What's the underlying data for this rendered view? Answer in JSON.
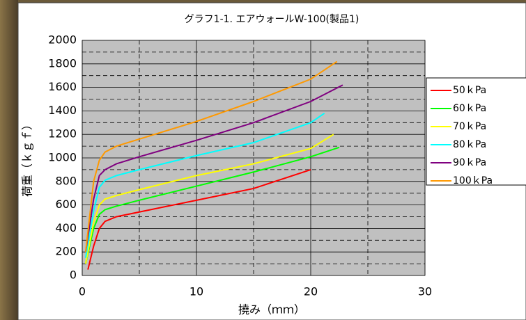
{
  "chart_data": {
    "type": "line",
    "title": "グラフ1-1.  エアウォールW-100(製品1)",
    "x_label": "撓み（ｍｍ）",
    "y_label": "荷重（ｋｇｆ）",
    "xlim": [
      0,
      30
    ],
    "ylim": [
      0,
      2000
    ],
    "xticks": [
      0,
      10,
      20,
      30
    ],
    "yticks": [
      0,
      200,
      400,
      600,
      800,
      1000,
      1200,
      1400,
      1600,
      1800,
      2000
    ],
    "minor_grid_x": [
      5,
      15,
      25
    ],
    "minor_grid_y": [
      100,
      300,
      500,
      700,
      900,
      1100,
      1300,
      1500,
      1700,
      1900
    ],
    "grid": true,
    "legend": "right",
    "series": [
      {
        "name": "50ｋPa",
        "color": "#ff0000",
        "x": [
          0.5,
          1,
          1.5,
          2,
          3,
          5,
          10,
          15,
          20
        ],
        "values": [
          50,
          250,
          400,
          460,
          500,
          540,
          640,
          740,
          900
        ]
      },
      {
        "name": "60ｋPa",
        "color": "#00ff00",
        "x": [
          0.3,
          1,
          1.5,
          2,
          3,
          5,
          10,
          15,
          20,
          22.5
        ],
        "values": [
          100,
          400,
          520,
          560,
          590,
          640,
          760,
          880,
          1010,
          1090
        ]
      },
      {
        "name": "70ｋPa",
        "color": "#ffff00",
        "x": [
          0.3,
          1,
          1.5,
          2,
          3,
          5,
          10,
          15,
          20,
          22
        ],
        "values": [
          100,
          450,
          600,
          650,
          680,
          730,
          850,
          950,
          1080,
          1200
        ]
      },
      {
        "name": "80ｋPa",
        "color": "#00ffff",
        "x": [
          0.3,
          1,
          1.5,
          2,
          3,
          5,
          10,
          15,
          20,
          21.2
        ],
        "values": [
          150,
          550,
          750,
          810,
          850,
          900,
          1020,
          1130,
          1300,
          1380
        ]
      },
      {
        "name": "90ｋPa",
        "color": "#800080",
        "x": [
          0.3,
          1,
          1.5,
          2,
          3,
          5,
          10,
          15,
          20,
          22.8
        ],
        "values": [
          200,
          650,
          850,
          900,
          950,
          1010,
          1150,
          1300,
          1480,
          1620
        ]
      },
      {
        "name": "100ｋPa",
        "color": "#ff9900",
        "x": [
          0.3,
          1,
          1.5,
          2,
          3,
          5,
          10,
          15,
          20,
          22.3
        ],
        "values": [
          200,
          800,
          980,
          1050,
          1100,
          1160,
          1310,
          1480,
          1670,
          1820
        ]
      }
    ]
  }
}
